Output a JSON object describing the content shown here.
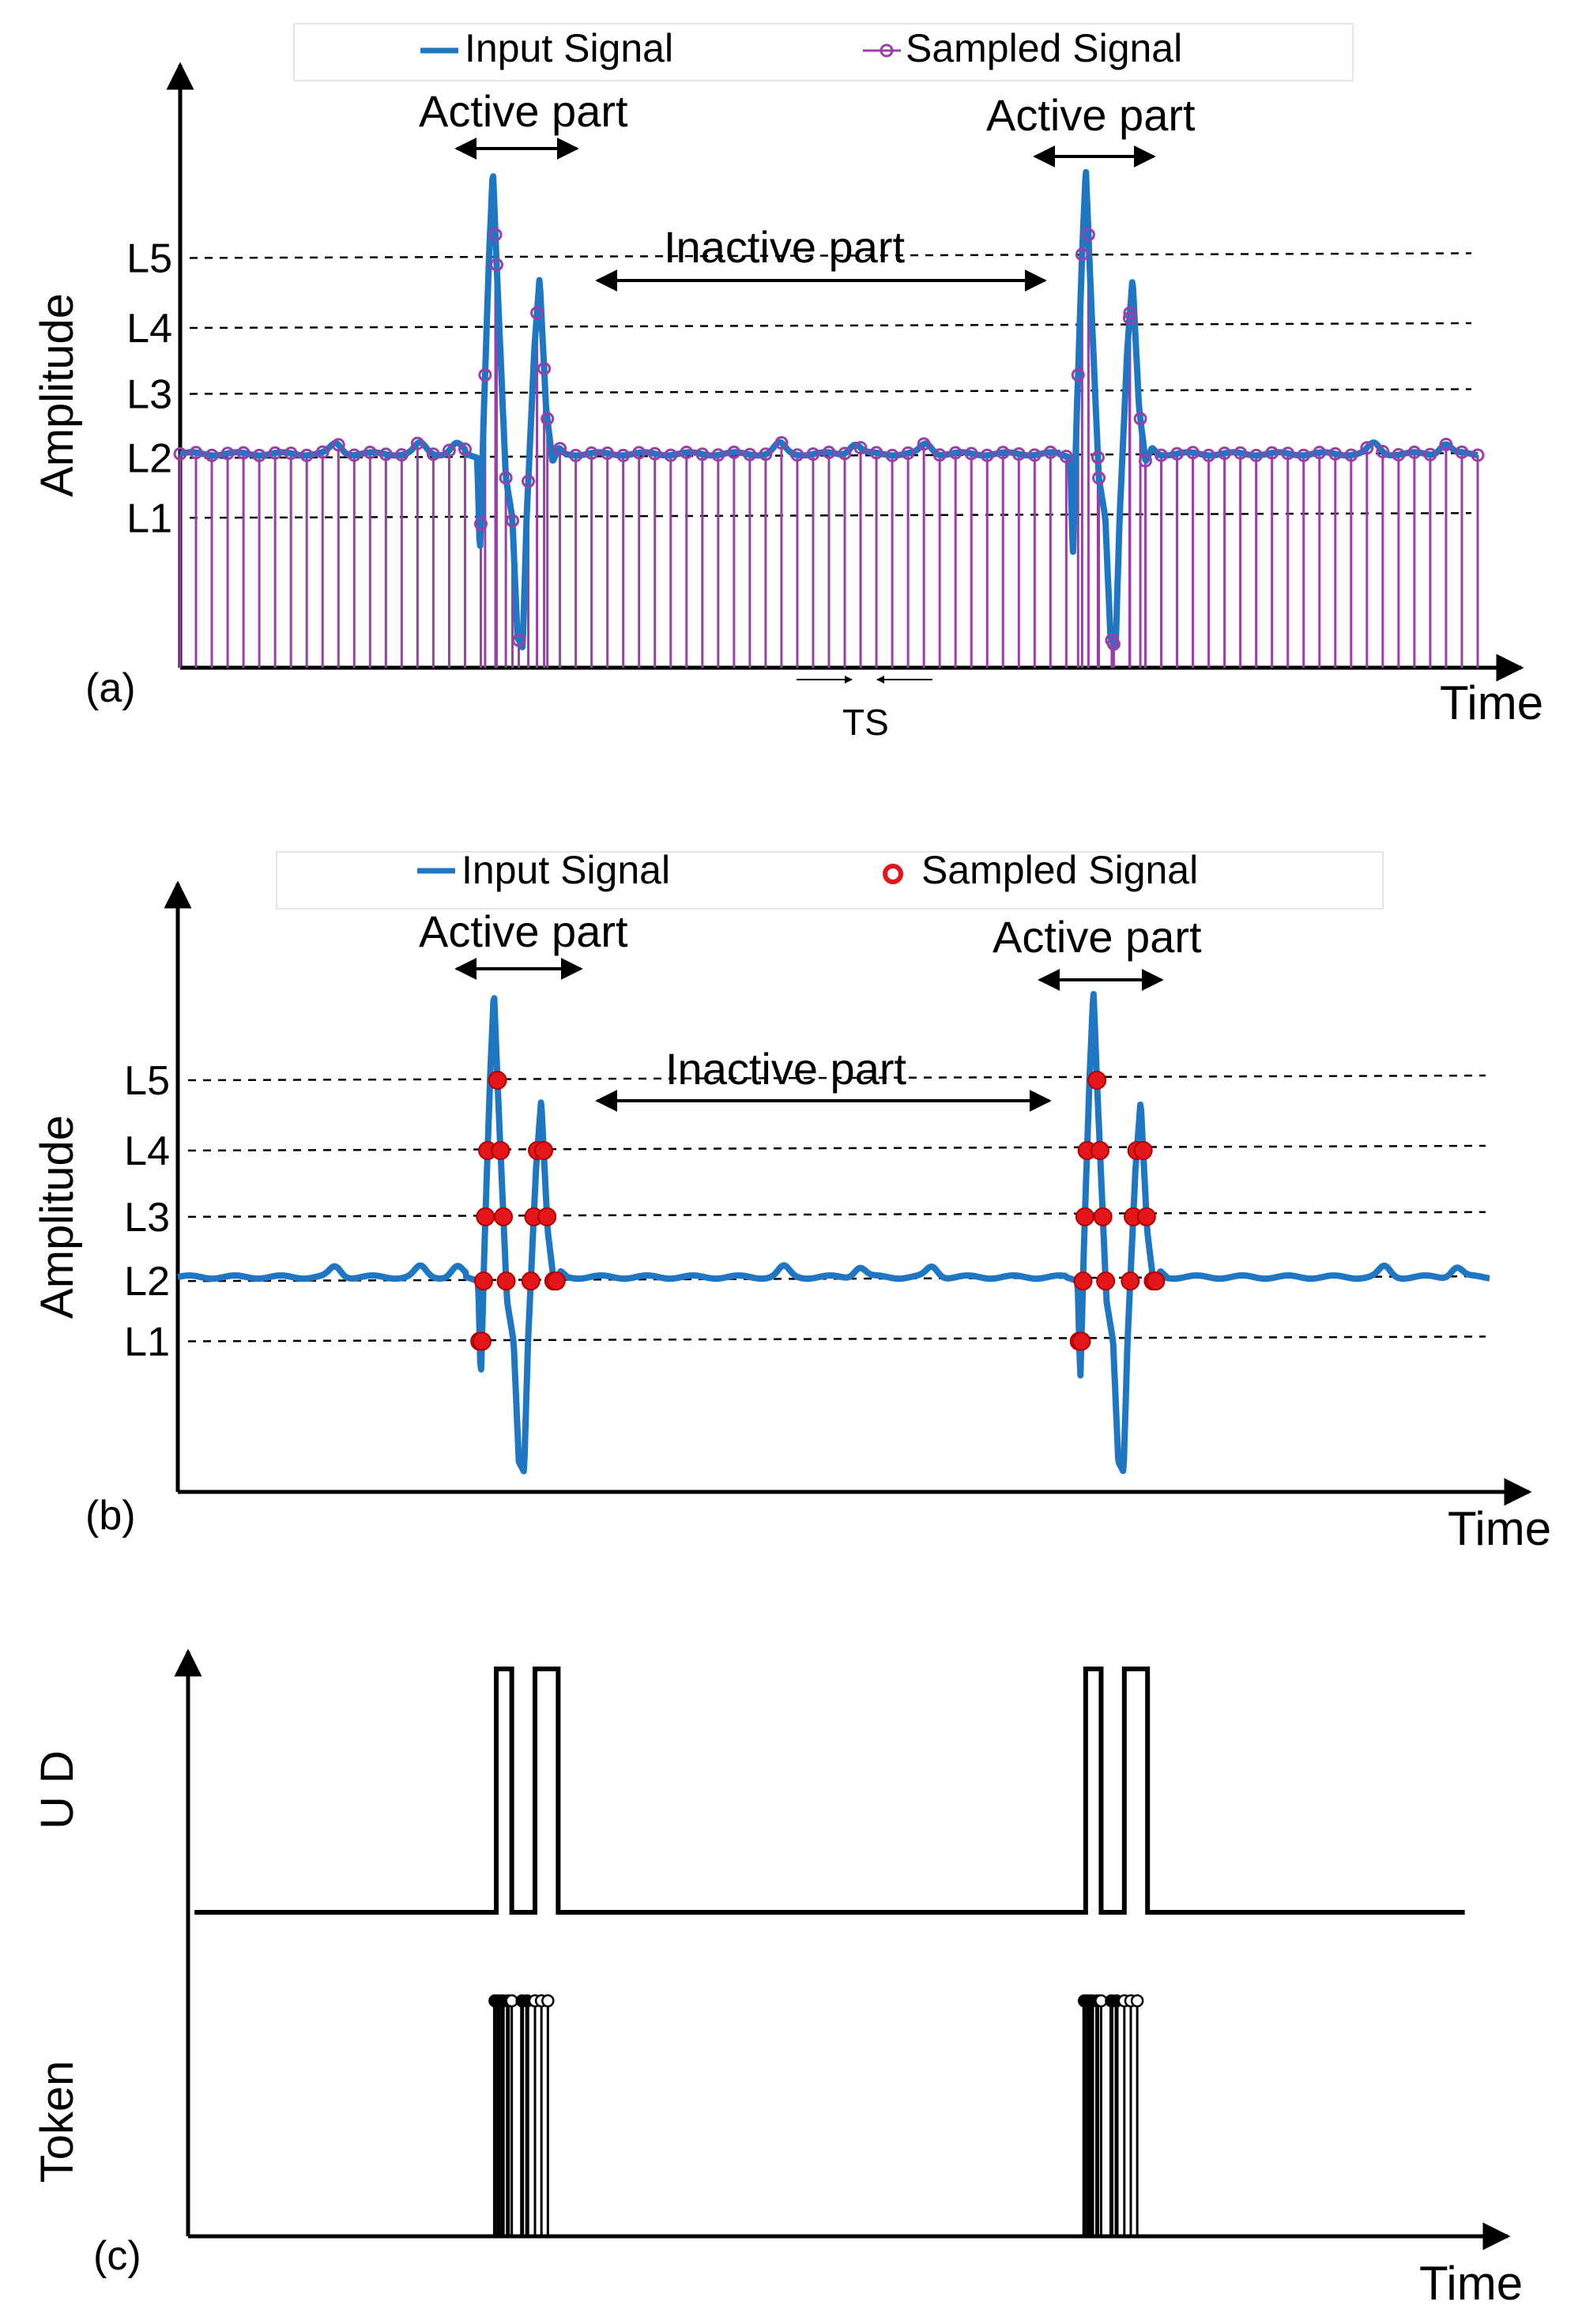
{
  "panels": [
    {
      "label": "(a)",
      "legend": {
        "input": "Input Signal",
        "sampled": "Sampled Signal"
      },
      "ylabel": "Amplitude",
      "xlabel": "Time",
      "levels": [
        "L1",
        "L2",
        "L3",
        "L4",
        "L5"
      ],
      "active_left": "Active part",
      "active_right": "Active part",
      "inactive": "Inactive part",
      "ts": "TS"
    },
    {
      "label": "(b)",
      "legend": {
        "input": "Input Signal",
        "sampled": "Sampled Signal"
      },
      "ylabel": "Amplitude",
      "xlabel": "Time",
      "levels": [
        "L1",
        "L2",
        "L3",
        "L4",
        "L5"
      ],
      "active_left": "Active part",
      "active_right": "Active part",
      "inactive": "Inactive part"
    },
    {
      "label": "(c)",
      "ylabel_top": "U D",
      "ylabel_bottom": "Token",
      "xlabel": "Time"
    }
  ],
  "colors": {
    "input": "#1f77c4",
    "sampled_a": "#9b3fa8",
    "sampled_b": "#e3161b",
    "axis": "#000000",
    "grid": "#000000"
  },
  "signal": {
    "baseline": 0.52,
    "levels": [
      0.2,
      0.5,
      0.82,
      1.15,
      1.5
    ],
    "pulse_centers": [
      0.247,
      0.704
    ],
    "pulse_shape": [
      [
        -0.027,
        0.52
      ],
      [
        -0.018,
        0.5
      ],
      [
        -0.016,
        0.0
      ],
      [
        -0.013,
        0.72
      ],
      [
        -0.009,
        1.5
      ],
      [
        -0.006,
        1.95
      ],
      [
        -0.003,
        1.45
      ],
      [
        0.0,
        1.0
      ],
      [
        0.004,
        0.4
      ],
      [
        0.009,
        0.2
      ],
      [
        0.013,
        -0.4
      ],
      [
        0.017,
        -0.45
      ],
      [
        0.02,
        0.2
      ],
      [
        0.026,
        1.05
      ],
      [
        0.03,
        1.4
      ],
      [
        0.035,
        0.75
      ],
      [
        0.04,
        0.48
      ],
      [
        0.045,
        0.55
      ],
      [
        0.05,
        0.52
      ]
    ],
    "wiggles": [
      0.12,
      0.185,
      0.213,
      0.462,
      0.52,
      0.575,
      0.92,
      0.975
    ]
  },
  "tokens": {
    "note": "panel (c) stems per pulse: offsets relative to pulse center and filled/hollow",
    "offsets": [
      -0.009,
      -0.006,
      -0.003,
      0.001,
      0.004,
      0.012,
      0.016,
      0.022,
      0.027,
      0.032
    ],
    "filled": [
      true,
      true,
      true,
      true,
      false,
      true,
      true,
      false,
      false,
      false
    ]
  },
  "ud": {
    "bursts": [
      [
        -0.008,
        0.004
      ],
      [
        0.022,
        0.04
      ]
    ]
  }
}
